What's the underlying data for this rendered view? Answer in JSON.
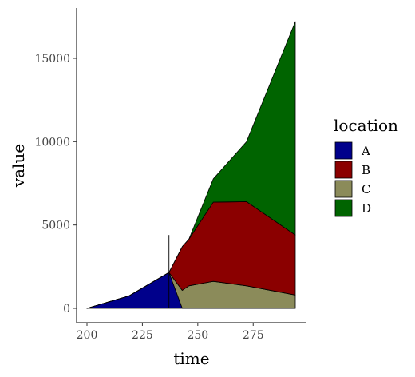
{
  "chart_data": {
    "type": "area",
    "stacked": true,
    "xlabel": "time",
    "ylabel": "value",
    "xlim": [
      195,
      395
    ],
    "ylim": [
      -800,
      17700
    ],
    "x_ticks": [
      200,
      225,
      250,
      275
    ],
    "y_ticks": [
      0,
      5000,
      10000,
      15000
    ],
    "x": [
      200,
      219,
      237,
      243,
      246,
      257,
      272,
      294
    ],
    "series": [
      {
        "name": "A",
        "color": "#00008b",
        "values": [
          0,
          750,
          2150,
          0,
          0,
          0,
          0,
          0
        ]
      },
      {
        "name": "C",
        "color": "#8b8b5a",
        "values": [
          0,
          0,
          0,
          1080,
          1350,
          1620,
          1350,
          800
        ]
      },
      {
        "name": "B",
        "color": "#8b0000",
        "values": [
          0,
          0,
          0,
          2620,
          2800,
          4750,
          5050,
          3600
        ]
      },
      {
        "name": "D",
        "color": "#006400",
        "values": [
          0,
          0,
          0,
          0,
          0,
          1400,
          3600,
          12800
        ]
      }
    ],
    "vertical_line": {
      "x": 237,
      "y0": 0,
      "y1": 4400
    },
    "legend": {
      "title": "location",
      "position": "right",
      "entries": [
        {
          "label": "A",
          "color": "#00008b"
        },
        {
          "label": "B",
          "color": "#8b0000"
        },
        {
          "label": "C",
          "color": "#8b8b5a"
        },
        {
          "label": "D",
          "color": "#006400"
        }
      ]
    },
    "grid": false
  }
}
